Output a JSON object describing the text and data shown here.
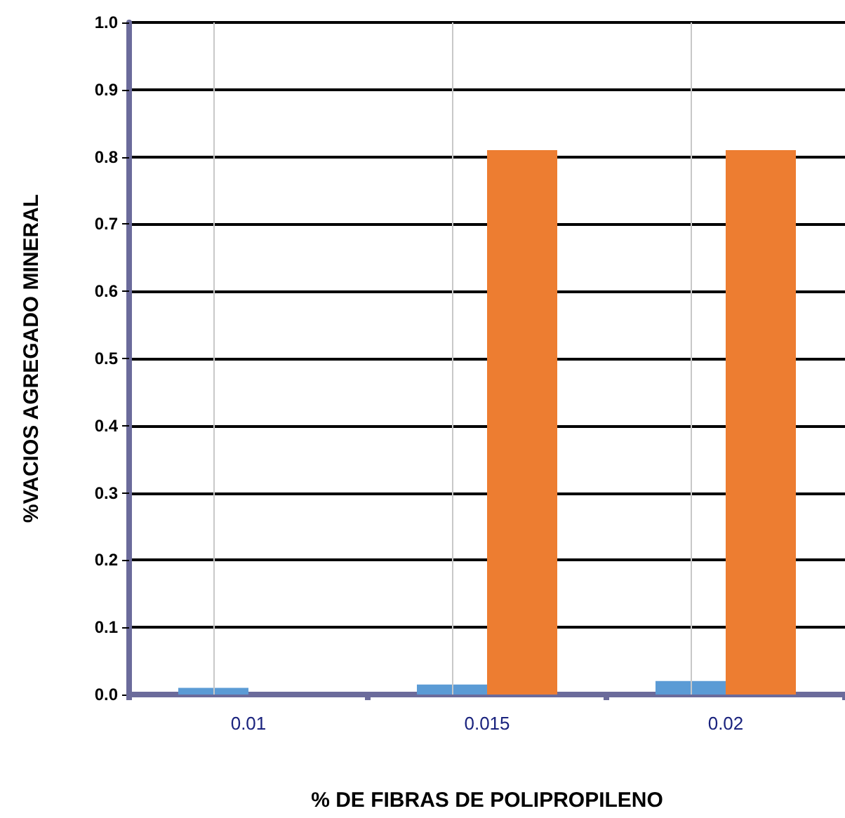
{
  "chart_data": {
    "type": "bar",
    "xlabel": "% DE FIBRAS DE POLIPROPILENO",
    "ylabel": "%VACIOS AGREGADO MINERAL",
    "categories": [
      "0.01",
      "0.015",
      "0.02"
    ],
    "series": [
      {
        "color": "#5b9bd5",
        "values": [
          0.01,
          0.015,
          0.02
        ]
      },
      {
        "color": "#ed7d31",
        "values": [
          null,
          0.81,
          0.81
        ]
      }
    ],
    "ylim": [
      0,
      1.0
    ],
    "yticks": [
      {
        "value": 0,
        "label": "0.0"
      },
      0.1,
      0.2,
      0.3,
      0.4,
      0.5,
      0.6,
      0.7,
      0.8,
      0.9,
      {
        "value": 1,
        "label": "1.0"
      }
    ],
    "grid": true
  }
}
